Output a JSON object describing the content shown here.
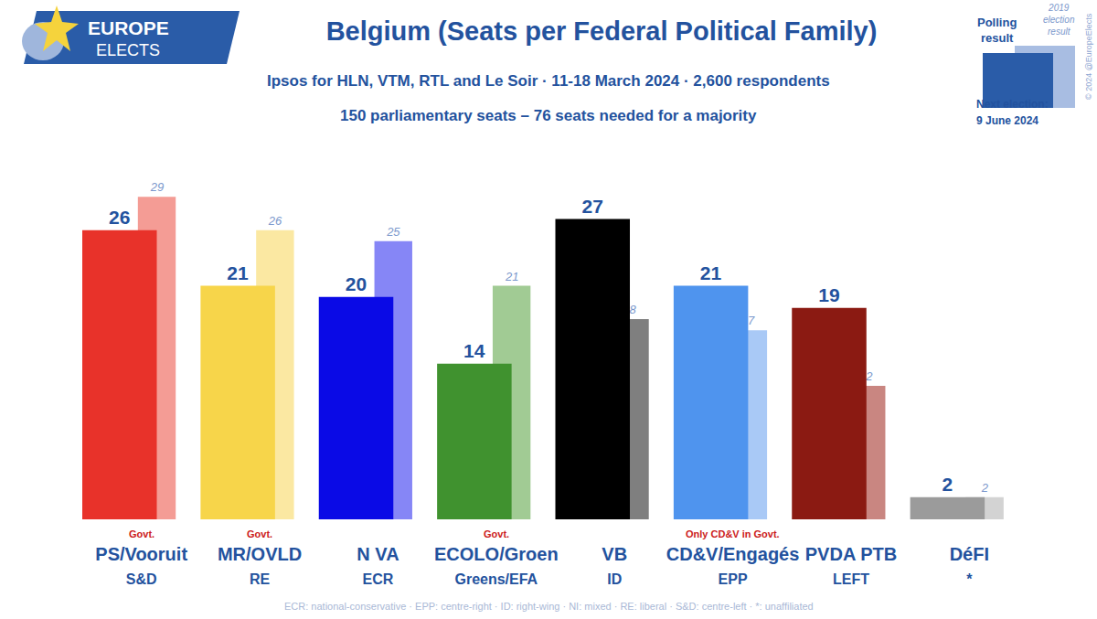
{
  "chart_data": {
    "type": "bar",
    "title": "Belgium (Seats per Federal Political Family)",
    "subtitle": [
      "Ipsos for HLN, VTM, RTL and Le Soir · 11-18 March 2024 · 2,600 respondents",
      "150 parliamentary seats – 76 seats needed for a majority"
    ],
    "categories": [
      "PS/Vooruit",
      "MR/OVLD",
      "N VA",
      "ECOLO/Groen",
      "VB",
      "CD&V/Engagés",
      "PVDA PTB",
      "DéFI"
    ],
    "families": [
      "S&D",
      "RE",
      "ECR",
      "Greens/EFA",
      "ID",
      "EPP",
      "LEFT",
      "*"
    ],
    "notes": [
      "Govt.",
      "Govt.",
      null,
      "Govt.",
      null,
      "Only CD&V in Govt.",
      null,
      null
    ],
    "series": [
      {
        "name": "Polling result",
        "color": "#2a5ca8",
        "colors": [
          "#e8322a",
          "#f7d54a",
          "#0a0ae6",
          "#40922f",
          "#000000",
          "#4f94ee",
          "#8b1a12",
          "#9b9b9b"
        ],
        "values": [
          26,
          21,
          20,
          14,
          27,
          21,
          19,
          2
        ]
      },
      {
        "name": "2019 election result",
        "color": "#a8bde2",
        "colors": [
          "#f49c95",
          "#fbe8a2",
          "#8686f6",
          "#a1cb94",
          "#7f7f7f",
          "#a9c9f6",
          "#c98681",
          "#d3d3d3"
        ],
        "values": [
          29,
          26,
          25,
          21,
          18,
          17,
          12,
          2
        ]
      }
    ],
    "ylim": [
      0,
      30
    ],
    "grid": false,
    "data_labels": true,
    "tick_labels": "x",
    "branding": [
      "EUROPE",
      "ELECTS"
    ],
    "next_election": [
      "Next election:",
      "9 June 2024"
    ],
    "footnote": "ECR: national-conservative · EPP: centre-right · ID: right-wing · NI: mixed · RE: liberal · S&D: centre-left · *: unaffiliated",
    "copyright": "© 2024 @EuropeElects"
  }
}
